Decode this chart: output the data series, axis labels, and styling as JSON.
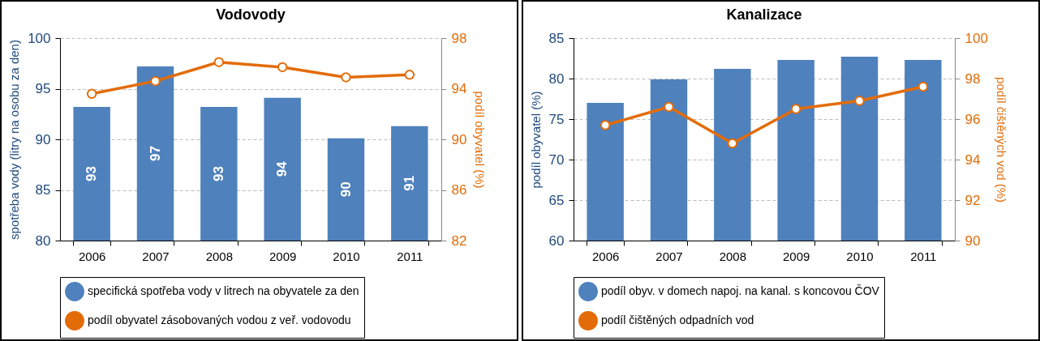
{
  "chart_data": [
    {
      "type": "bar",
      "title": "Vodovody",
      "categories": [
        "2006",
        "2007",
        "2008",
        "2009",
        "2010",
        "2011"
      ],
      "ylabel": "spotřeba vody (litry na osobu za den)",
      "y2label": "podíl obyvatel  (%)",
      "ylim": [
        80,
        100
      ],
      "yticks": [
        80,
        85,
        90,
        95,
        100
      ],
      "y2lim": [
        82,
        98
      ],
      "y2ticks": [
        82,
        86,
        90,
        94,
        98
      ],
      "grid": "y",
      "legend": "bottom",
      "marker": "circle",
      "series": [
        {
          "name": "specifická spotřeba vody v litrech na obyvatele za den",
          "color": "#4f81bd",
          "values": [
            93.2,
            97.2,
            93.2,
            94.1,
            90.1,
            91.3
          ],
          "value_labels": [
            "93",
            "97",
            "93",
            "94",
            "90",
            "91"
          ]
        },
        {
          "name": "podíl obyvatel zásobovaných vodou z veř. vodovodu",
          "type": "line",
          "axis": "y2",
          "color": "#e36c09",
          "values": [
            93.6,
            94.6,
            96.1,
            95.7,
            94.9,
            95.1
          ]
        }
      ]
    },
    {
      "type": "bar",
      "title": "Kanalizace",
      "categories": [
        "2006",
        "2007",
        "2008",
        "2009",
        "2010",
        "2011"
      ],
      "ylabel": "podíl obyvatel  (%)",
      "y2label": "podíl čištěných vod (%)",
      "ylim": [
        60,
        85
      ],
      "yticks": [
        60,
        65,
        70,
        75,
        80,
        85
      ],
      "y2lim": [
        90,
        100
      ],
      "y2ticks": [
        90,
        92,
        94,
        96,
        98,
        100
      ],
      "grid": "y",
      "legend": "bottom",
      "marker": "circle",
      "series": [
        {
          "name": "podíl obyv. v domech napoj. na kanal. s koncovou ČOV",
          "color": "#4f81bd",
          "values": [
            77.0,
            79.9,
            81.2,
            82.3,
            82.7,
            82.3
          ]
        },
        {
          "name": "podíl čištěných odpadních vod",
          "type": "line",
          "axis": "y2",
          "color": "#e36c09",
          "values": [
            95.7,
            96.6,
            94.8,
            96.5,
            96.9,
            97.6
          ]
        }
      ]
    }
  ]
}
